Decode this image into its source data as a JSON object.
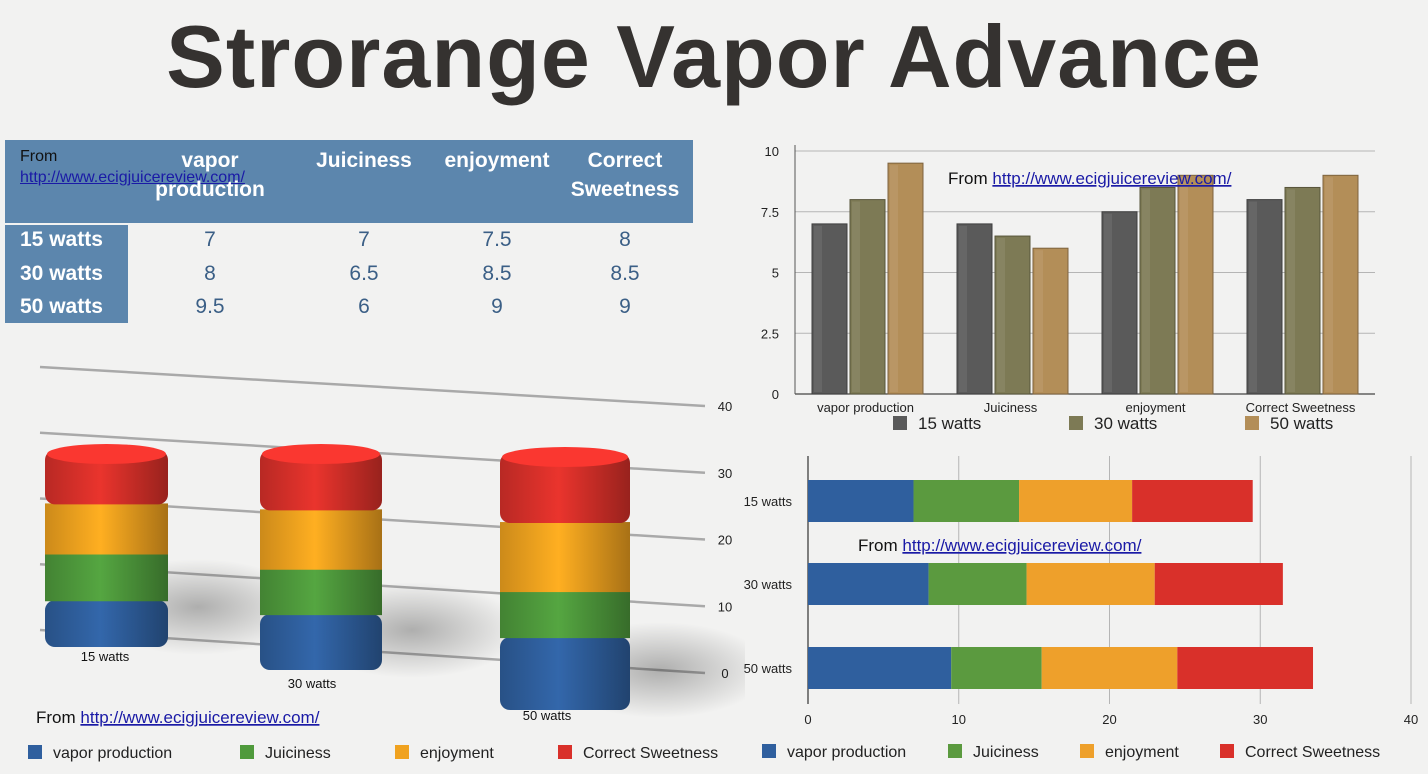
{
  "title": "Strorange Vapor Advance",
  "table": {
    "source_prefix": "From ",
    "source_link": "http://www.ecigjuicereview.com/",
    "columns": [
      "vapor production",
      "Juiciness",
      "enjoyment",
      "Correct Sweetness"
    ],
    "rows": [
      {
        "label": "15 watts",
        "values": [
          "7",
          "7",
          "7.5",
          "8"
        ]
      },
      {
        "label": "30 watts",
        "values": [
          "8",
          "6.5",
          "8.5",
          "8.5"
        ]
      },
      {
        "label": "50 watts",
        "values": [
          "9.5",
          "6",
          "9",
          "9"
        ]
      }
    ],
    "colors": {
      "header": "#5c86ad",
      "value_text": "#3b5f86"
    }
  },
  "chart_data": [
    {
      "type": "bar",
      "chart_id": "grouped-bars",
      "source_prefix": "From ",
      "source_link": "http://www.ecigjuicereview.com/",
      "categories": [
        "vapor production",
        "Juiciness",
        "enjoyment",
        "Correct Sweetness"
      ],
      "series": [
        {
          "name": "15 watts",
          "values": [
            7,
            7,
            7.5,
            8
          ],
          "color": "#5a5a5a"
        },
        {
          "name": "30 watts",
          "values": [
            8,
            6.5,
            8.5,
            8.5
          ],
          "color": "#7d7a55"
        },
        {
          "name": "50 watts",
          "values": [
            9.5,
            6,
            9,
            9
          ],
          "color": "#b38e58"
        }
      ],
      "ylim": [
        0,
        10
      ],
      "yticks": [
        "0",
        "2.5",
        "5",
        "7.5",
        "10"
      ],
      "grid": true,
      "legend": "bottom"
    },
    {
      "type": "bar",
      "chart_id": "stacked-3d-columns",
      "stacked": true,
      "source_prefix": "From ",
      "source_link": "http://www.ecigjuicereview.com/",
      "categories": [
        "15 watts",
        "30 watts",
        "50 watts"
      ],
      "series": [
        {
          "name": "vapor production",
          "values": [
            7,
            8,
            9.5
          ],
          "color": "#2f5f9e"
        },
        {
          "name": "Juiciness",
          "values": [
            7,
            6.5,
            6
          ],
          "color": "#4f9a3c"
        },
        {
          "name": "enjoyment",
          "values": [
            7.5,
            8.5,
            9
          ],
          "color": "#f0a21f"
        },
        {
          "name": "Correct Sweetness",
          "values": [
            8,
            8.5,
            9
          ],
          "color": "#d9302a"
        }
      ],
      "ylim": [
        0,
        40
      ],
      "yticks": [
        "0",
        "10",
        "20",
        "30",
        "40"
      ],
      "grid": true,
      "legend": "bottom"
    },
    {
      "type": "bar",
      "chart_id": "stacked-horizontal",
      "orientation": "horizontal",
      "stacked": true,
      "source_prefix": "From ",
      "source_link": "http://www.ecigjuicereview.com/",
      "categories": [
        "15 watts",
        "30 watts",
        "50 watts"
      ],
      "series": [
        {
          "name": "vapor production",
          "values": [
            7,
            8,
            9.5
          ],
          "color": "#2f5f9e"
        },
        {
          "name": "Juiciness",
          "values": [
            7,
            6.5,
            6
          ],
          "color": "#5b9a3f"
        },
        {
          "name": "enjoyment",
          "values": [
            7.5,
            8.5,
            9
          ],
          "color": "#eea02b"
        },
        {
          "name": "Correct Sweetness",
          "values": [
            8,
            8.5,
            9
          ],
          "color": "#d9302a"
        }
      ],
      "xlim": [
        0,
        40
      ],
      "xticks": [
        "0",
        "10",
        "20",
        "30",
        "40"
      ],
      "grid": true,
      "legend": "bottom"
    }
  ]
}
